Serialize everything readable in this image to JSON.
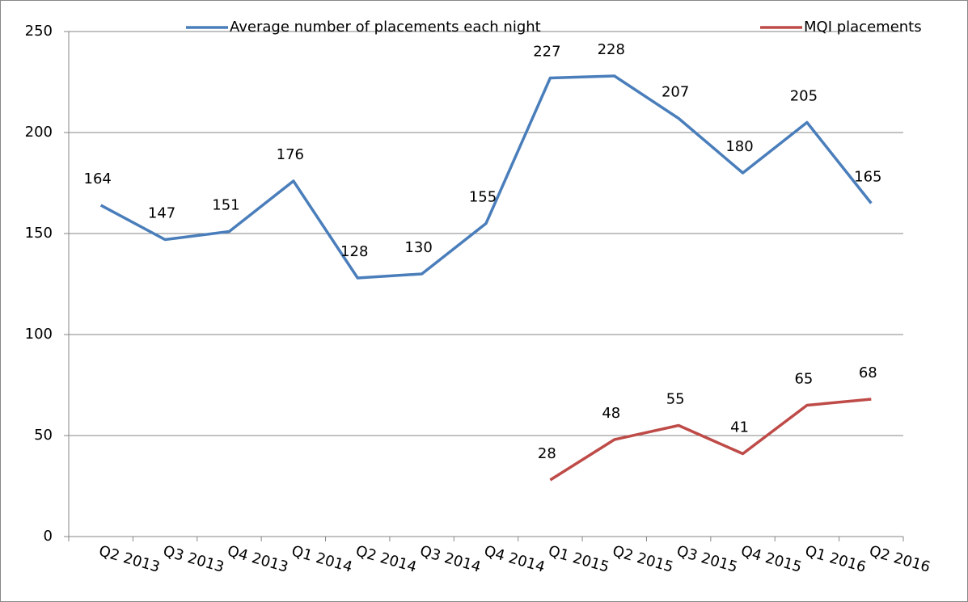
{
  "chart_data": {
    "type": "line",
    "categories": [
      "Q2 2013",
      "Q3 2013",
      "Q4 2013",
      "Q1 2014",
      "Q2 2014",
      "Q3 2014",
      "Q4 2014",
      "Q1 2015",
      "Q2 2015",
      "Q3 2015",
      "Q4 2015",
      "Q1 2016",
      "Q2 2016"
    ],
    "series": [
      {
        "name": "Average number of placements each night",
        "color": "#4a7ebb",
        "values": [
          164,
          147,
          151,
          176,
          128,
          130,
          155,
          227,
          228,
          207,
          180,
          205,
          165
        ]
      },
      {
        "name": "MQI placements",
        "color": "#be4b48",
        "values": [
          null,
          null,
          null,
          null,
          null,
          null,
          null,
          28,
          48,
          55,
          41,
          65,
          68
        ]
      }
    ],
    "ylim": [
      0,
      250
    ],
    "yticks": [
      0,
      50,
      100,
      150,
      200,
      250
    ],
    "grid": true,
    "legend": "top"
  }
}
